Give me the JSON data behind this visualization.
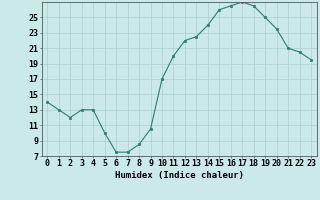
{
  "x": [
    0,
    1,
    2,
    3,
    4,
    5,
    6,
    7,
    8,
    9,
    10,
    11,
    12,
    13,
    14,
    15,
    16,
    17,
    18,
    19,
    20,
    21,
    22,
    23
  ],
  "y": [
    14,
    13,
    12,
    13,
    13,
    10,
    7.5,
    7.5,
    8.5,
    10.5,
    17,
    20,
    22,
    22.5,
    24,
    26,
    26.5,
    27,
    26.5,
    25,
    23.5,
    21,
    20.5,
    19.5
  ],
  "line_color": "#2e7d6e",
  "marker_color": "#2e7d6e",
  "bg_color": "#cce9e9",
  "grid_color": "#aacfcf",
  "xlabel": "Humidex (Indice chaleur)",
  "xlim": [
    -0.5,
    23.5
  ],
  "ylim": [
    7,
    27
  ],
  "yticks": [
    7,
    9,
    11,
    13,
    15,
    17,
    19,
    21,
    23,
    25
  ],
  "xtick_labels": [
    "0",
    "1",
    "2",
    "3",
    "4",
    "5",
    "6",
    "7",
    "8",
    "9",
    "10",
    "11",
    "12",
    "13",
    "14",
    "15",
    "16",
    "17",
    "18",
    "19",
    "20",
    "21",
    "22",
    "23"
  ],
  "xlabel_fontsize": 6.5,
  "tick_fontsize": 6
}
